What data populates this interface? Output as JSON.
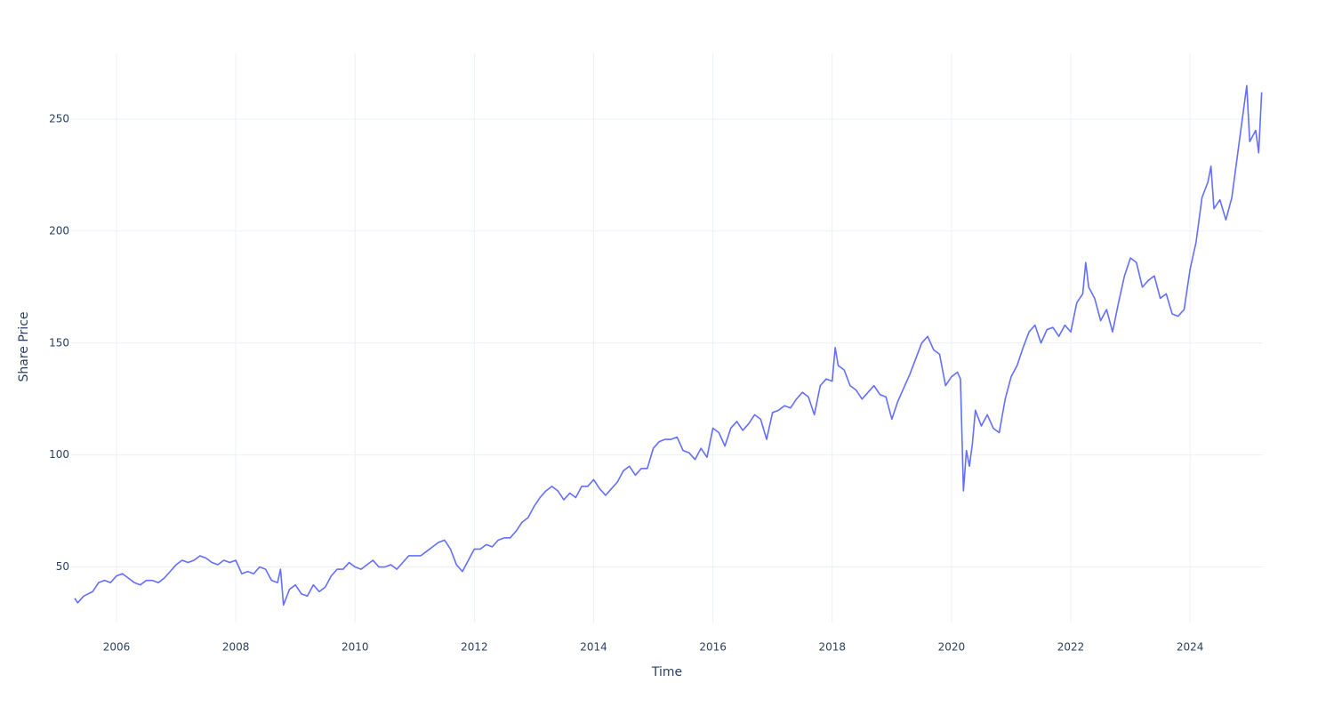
{
  "chart_data": {
    "type": "line",
    "x_label": "Time",
    "y_label": "Share Price",
    "xlim": [
      2005.24,
      2025.22
    ],
    "ylim": [
      25.2,
      279.4
    ],
    "xticks": [
      2006,
      2008,
      2010,
      2012,
      2014,
      2016,
      2018,
      2020,
      2022,
      2024
    ],
    "yticks": [
      50,
      100,
      150,
      200,
      250
    ],
    "grid": true,
    "series": [
      {
        "color": "#636efa",
        "x": [
          2005.3,
          2005.35,
          2005.45,
          2005.6,
          2005.7,
          2005.8,
          2005.9,
          2006.0,
          2006.1,
          2006.2,
          2006.3,
          2006.4,
          2006.5,
          2006.6,
          2006.7,
          2006.8,
          2006.9,
          2007.0,
          2007.1,
          2007.2,
          2007.3,
          2007.4,
          2007.5,
          2007.6,
          2007.7,
          2007.8,
          2007.9,
          2008.0,
          2008.1,
          2008.2,
          2008.3,
          2008.4,
          2008.5,
          2008.6,
          2008.7,
          2008.75,
          2008.8,
          2008.9,
          2009.0,
          2009.1,
          2009.2,
          2009.3,
          2009.4,
          2009.5,
          2009.6,
          2009.7,
          2009.8,
          2009.9,
          2010.0,
          2010.1,
          2010.2,
          2010.3,
          2010.4,
          2010.5,
          2010.6,
          2010.7,
          2010.8,
          2010.9,
          2011.0,
          2011.1,
          2011.2,
          2011.3,
          2011.4,
          2011.5,
          2011.6,
          2011.7,
          2011.8,
          2011.9,
          2012.0,
          2012.1,
          2012.2,
          2012.3,
          2012.4,
          2012.5,
          2012.6,
          2012.7,
          2012.8,
          2012.9,
          2013.0,
          2013.1,
          2013.2,
          2013.3,
          2013.4,
          2013.5,
          2013.6,
          2013.7,
          2013.8,
          2013.9,
          2014.0,
          2014.1,
          2014.2,
          2014.3,
          2014.4,
          2014.5,
          2014.6,
          2014.7,
          2014.8,
          2014.9,
          2015.0,
          2015.1,
          2015.2,
          2015.3,
          2015.4,
          2015.5,
          2015.6,
          2015.7,
          2015.8,
          2015.9,
          2016.0,
          2016.1,
          2016.2,
          2016.3,
          2016.4,
          2016.5,
          2016.6,
          2016.7,
          2016.8,
          2016.9,
          2017.0,
          2017.1,
          2017.2,
          2017.3,
          2017.4,
          2017.5,
          2017.6,
          2017.7,
          2017.8,
          2017.9,
          2018.0,
          2018.05,
          2018.1,
          2018.2,
          2018.3,
          2018.4,
          2018.5,
          2018.6,
          2018.7,
          2018.8,
          2018.9,
          2019.0,
          2019.1,
          2019.2,
          2019.3,
          2019.4,
          2019.5,
          2019.6,
          2019.7,
          2019.8,
          2019.9,
          2020.0,
          2020.1,
          2020.15,
          2020.2,
          2020.25,
          2020.3,
          2020.35,
          2020.4,
          2020.5,
          2020.6,
          2020.7,
          2020.8,
          2020.9,
          2021.0,
          2021.1,
          2021.2,
          2021.3,
          2021.4,
          2021.5,
          2021.6,
          2021.7,
          2021.8,
          2021.9,
          2022.0,
          2022.1,
          2022.2,
          2022.25,
          2022.3,
          2022.4,
          2022.5,
          2022.6,
          2022.7,
          2022.8,
          2022.9,
          2023.0,
          2023.1,
          2023.2,
          2023.3,
          2023.4,
          2023.5,
          2023.6,
          2023.7,
          2023.8,
          2023.9,
          2024.0,
          2024.1,
          2024.2,
          2024.3,
          2024.35,
          2024.4,
          2024.5,
          2024.6,
          2024.7,
          2024.8,
          2024.9,
          2024.95,
          2025.0,
          2025.1,
          2025.15,
          2025.2
        ],
        "values": [
          36,
          34,
          37,
          39,
          43,
          44,
          43,
          46,
          47,
          45,
          43,
          42,
          44,
          44,
          43,
          45,
          48,
          51,
          53,
          52,
          53,
          55,
          54,
          52,
          51,
          53,
          52,
          53,
          47,
          48,
          47,
          50,
          49,
          44,
          43,
          49,
          33,
          40,
          42,
          38,
          37,
          42,
          39,
          41,
          46,
          49,
          49,
          52,
          50,
          49,
          51,
          53,
          50,
          50,
          51,
          49,
          52,
          55,
          55,
          55,
          57,
          59,
          61,
          62,
          58,
          51,
          48,
          53,
          58,
          58,
          60,
          59,
          62,
          63,
          63,
          66,
          70,
          72,
          77,
          81,
          84,
          86,
          84,
          80,
          83,
          81,
          86,
          86,
          89,
          85,
          82,
          85,
          88,
          93,
          95,
          91,
          94,
          94,
          103,
          106,
          107,
          107,
          108,
          102,
          101,
          98,
          103,
          99,
          112,
          110,
          104,
          112,
          115,
          111,
          114,
          118,
          116,
          107,
          119,
          120,
          122,
          121,
          125,
          128,
          126,
          118,
          131,
          134,
          133,
          148,
          140,
          138,
          131,
          129,
          125,
          128,
          131,
          127,
          126,
          116,
          124,
          130,
          136,
          143,
          150,
          153,
          147,
          145,
          131,
          135,
          137,
          134,
          84,
          102,
          95,
          105,
          120,
          113,
          118,
          112,
          110,
          125,
          135,
          140,
          148,
          155,
          158,
          150,
          156,
          157,
          153,
          158,
          155,
          168,
          172,
          186,
          175,
          170,
          160,
          165,
          155,
          168,
          180,
          188,
          186,
          175,
          178,
          180,
          170,
          172,
          163,
          162,
          165,
          183,
          195,
          215,
          222,
          229,
          210,
          214,
          205,
          215,
          235,
          255,
          265,
          240,
          245,
          235,
          262
        ]
      }
    ]
  }
}
